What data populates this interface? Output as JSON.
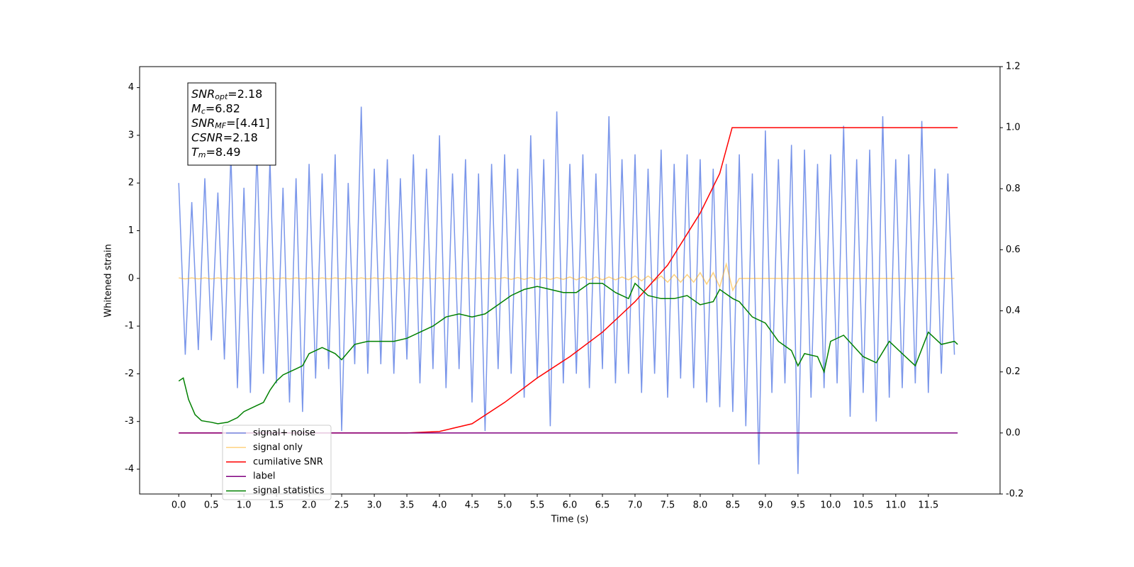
{
  "chart_data": {
    "type": "line",
    "xlabel": "Time (s)",
    "ylabel": "Whitened strain",
    "xlim": [
      -0.6,
      12.6
    ],
    "ylim": [
      -4.52,
      4.44
    ],
    "y2lim": [
      -0.2,
      1.2
    ],
    "xticks": [
      {
        "value": 0,
        "label": "0.0"
      },
      0.5,
      {
        "value": 1,
        "label": "1.0"
      },
      1.5,
      {
        "value": 2,
        "label": "2.0"
      },
      2.5,
      {
        "value": 3,
        "label": "3.0"
      },
      3.5,
      {
        "value": 4,
        "label": "4.0"
      },
      4.5,
      {
        "value": 5,
        "label": "5.0"
      },
      5.5,
      {
        "value": 6,
        "label": "6.0"
      },
      6.5,
      {
        "value": 7,
        "label": "7.0"
      },
      7.5,
      {
        "value": 8,
        "label": "8.0"
      },
      8.5,
      {
        "value": 9,
        "label": "9.0"
      },
      9.5,
      {
        "value": 10,
        "label": "10.0"
      },
      10.5,
      {
        "value": 11,
        "label": "11.0"
      },
      11.5
    ],
    "yticks": [
      -4,
      -3,
      -2,
      -1,
      0,
      1,
      2,
      3,
      4
    ],
    "y2ticks": [
      -0.2,
      {
        "value": 0,
        "label": "0.0"
      },
      0.2,
      0.4,
      0.6,
      0.8,
      {
        "value": 1,
        "label": "1.0"
      },
      1.2
    ],
    "legend": "lower left",
    "annotation": [
      {
        "symbol": "SNR",
        "subscript": "opt",
        "text": "=2.18"
      },
      {
        "symbol": "M",
        "subscript": "c",
        "text": "=6.82"
      },
      {
        "symbol": "SNR",
        "subscript": "MF",
        "text": "=[4.41]"
      },
      {
        "symbol": "CSNR",
        "text": "=2.18"
      },
      {
        "symbol": "T",
        "subscript": "m",
        "text": "=8.49"
      }
    ],
    "x": [
      0,
      0.1,
      0.2,
      0.3,
      0.4,
      0.5,
      0.6,
      0.7,
      0.8,
      0.9,
      1,
      1.1,
      1.2,
      1.3,
      1.4,
      1.5,
      1.6,
      1.7,
      1.8,
      1.9,
      2,
      2.1,
      2.2,
      2.3,
      2.4,
      2.5,
      2.6,
      2.7,
      2.8,
      2.9,
      3,
      3.1,
      3.2,
      3.3,
      3.4,
      3.5,
      3.6,
      3.7,
      3.8,
      3.9,
      4,
      4.1,
      4.2,
      4.3,
      4.4,
      4.5,
      4.6,
      4.7,
      4.8,
      4.9,
      5,
      5.1,
      5.2,
      5.3,
      5.4,
      5.5,
      5.6,
      5.7,
      5.8,
      5.9,
      6,
      6.1,
      6.2,
      6.3,
      6.4,
      6.5,
      6.6,
      6.7,
      6.8,
      6.9,
      7,
      7.1,
      7.2,
      7.3,
      7.4,
      7.5,
      7.6,
      7.7,
      7.8,
      7.9,
      8,
      8.1,
      8.2,
      8.3,
      8.4,
      8.5,
      8.6,
      8.7,
      8.8,
      8.9,
      9,
      9.1,
      9.2,
      9.3,
      9.4,
      9.5,
      9.6,
      9.7,
      9.8,
      9.9,
      10,
      10.1,
      10.2,
      10.3,
      10.4,
      10.5,
      10.6,
      10.7,
      10.8,
      10.9,
      11,
      11.1,
      11.2,
      11.3,
      11.4,
      11.5,
      11.6,
      11.7,
      11.8,
      11.9
    ],
    "series": [
      {
        "name": "signal+ noise",
        "color": "#4169e1",
        "alpha": 0.7,
        "values": [
          2.0,
          -1.6,
          1.6,
          -1.5,
          2.1,
          -1.3,
          1.8,
          -1.7,
          2.6,
          -2.3,
          1.9,
          -2.4,
          2.7,
          -2.0,
          2.5,
          -2.2,
          1.9,
          -2.6,
          2.1,
          -2.8,
          2.4,
          -2.1,
          2.2,
          -1.9,
          2.6,
          -3.2,
          2.0,
          -1.8,
          3.6,
          -2.0,
          2.3,
          -1.8,
          2.5,
          -2.0,
          2.1,
          -1.7,
          2.6,
          -2.2,
          2.3,
          -1.9,
          3.0,
          -2.3,
          2.2,
          -1.9,
          2.5,
          -2.6,
          2.2,
          -3.2,
          2.4,
          -1.9,
          2.6,
          -2.0,
          2.3,
          -2.5,
          3.0,
          -2.1,
          2.5,
          -3.1,
          3.5,
          -2.2,
          2.4,
          -2.0,
          2.6,
          -2.3,
          2.2,
          -1.9,
          3.4,
          -2.2,
          2.5,
          -2.0,
          2.6,
          -2.4,
          2.3,
          -2.0,
          2.7,
          -2.5,
          2.4,
          -2.1,
          2.6,
          -2.3,
          2.5,
          -2.6,
          2.3,
          -2.7,
          2.4,
          -2.8,
          2.6,
          -3.1,
          2.2,
          -3.9,
          3.1,
          -2.4,
          2.5,
          -2.2,
          2.8,
          -4.1,
          2.7,
          -2.5,
          2.4,
          -2.3,
          2.6,
          -2.2,
          3.2,
          -2.9,
          2.5,
          -2.4,
          2.7,
          -3.0,
          3.4,
          -2.5,
          2.5,
          -2.3,
          2.6,
          -2.2,
          3.3,
          -2.4,
          2.3,
          -2.0,
          2.2,
          -1.6
        ]
      },
      {
        "name": "signal only",
        "color": "#ffa500",
        "alpha": 0.5,
        "values": [
          0.01,
          -0.01,
          0.01,
          -0.01,
          0.01,
          -0.01,
          0.01,
          -0.01,
          0.01,
          -0.01,
          0.01,
          -0.01,
          0.01,
          -0.01,
          0.01,
          -0.01,
          0.01,
          -0.01,
          0.01,
          -0.01,
          0.01,
          -0.01,
          0.01,
          -0.01,
          0.01,
          -0.01,
          0.01,
          -0.01,
          0.01,
          -0.01,
          0.01,
          -0.01,
          0.01,
          -0.01,
          0.01,
          -0.01,
          0.01,
          -0.01,
          0.01,
          -0.01,
          0.01,
          -0.01,
          0.01,
          -0.01,
          0.01,
          -0.01,
          0.01,
          -0.01,
          0.01,
          -0.01,
          0.02,
          -0.02,
          0.02,
          -0.02,
          0.02,
          -0.02,
          0.02,
          -0.02,
          0.02,
          -0.02,
          0.03,
          -0.03,
          0.03,
          -0.03,
          0.03,
          -0.03,
          0.03,
          -0.03,
          0.03,
          -0.03,
          0.05,
          -0.05,
          0.05,
          -0.05,
          0.05,
          -0.08,
          0.08,
          -0.08,
          0.08,
          -0.08,
          0.12,
          -0.12,
          0.12,
          -0.18,
          0.3,
          -0.25,
          0,
          0,
          0,
          0,
          0,
          0,
          0,
          0,
          0,
          0,
          0,
          0,
          0,
          0,
          0,
          0,
          0,
          0,
          0,
          0,
          0,
          0,
          0,
          0,
          0,
          0,
          0,
          0,
          0,
          0,
          0,
          0,
          0,
          0
        ]
      },
      {
        "name": "cumilative SNR",
        "color": "#ff0000",
        "axis": "y2",
        "x": [
          0,
          3.5,
          4.0,
          4.5,
          5.0,
          5.5,
          6.0,
          6.5,
          7.0,
          7.5,
          8.0,
          8.3,
          8.49,
          8.5,
          11.95
        ],
        "values": [
          0,
          0,
          0.005,
          0.03,
          0.1,
          0.18,
          0.25,
          0.33,
          0.43,
          0.55,
          0.72,
          0.85,
          1.0,
          1.0,
          1.0
        ]
      },
      {
        "name": "label",
        "color": "#800080",
        "axis": "y2",
        "x": [
          0,
          11.95
        ],
        "values": [
          0,
          0
        ]
      },
      {
        "name": "signal statistics",
        "color": "#008000",
        "axis": "y2",
        "x": [
          0,
          0.07,
          0.15,
          0.25,
          0.35,
          0.5,
          0.6,
          0.75,
          0.9,
          1.0,
          1.2,
          1.3,
          1.4,
          1.5,
          1.6,
          1.7,
          1.8,
          1.9,
          2.0,
          2.2,
          2.4,
          2.5,
          2.7,
          2.9,
          3.1,
          3.3,
          3.5,
          3.7,
          3.9,
          4.1,
          4.3,
          4.5,
          4.7,
          4.9,
          5.1,
          5.3,
          5.5,
          5.7,
          5.9,
          6.1,
          6.3,
          6.5,
          6.7,
          6.9,
          7.0,
          7.2,
          7.4,
          7.6,
          7.8,
          8.0,
          8.2,
          8.3,
          8.5,
          8.6,
          8.8,
          9.0,
          9.2,
          9.4,
          9.5,
          9.6,
          9.8,
          9.9,
          10.0,
          10.2,
          10.5,
          10.7,
          10.9,
          11.1,
          11.3,
          11.5,
          11.7,
          11.9,
          11.95
        ],
        "values": [
          0.17,
          0.18,
          0.11,
          0.06,
          0.04,
          0.035,
          0.03,
          0.035,
          0.05,
          0.07,
          0.09,
          0.1,
          0.14,
          0.17,
          0.19,
          0.2,
          0.21,
          0.22,
          0.26,
          0.28,
          0.26,
          0.24,
          0.29,
          0.3,
          0.3,
          0.3,
          0.31,
          0.33,
          0.35,
          0.38,
          0.39,
          0.38,
          0.39,
          0.42,
          0.45,
          0.47,
          0.48,
          0.47,
          0.46,
          0.46,
          0.49,
          0.49,
          0.46,
          0.44,
          0.49,
          0.45,
          0.44,
          0.44,
          0.45,
          0.42,
          0.43,
          0.47,
          0.44,
          0.43,
          0.38,
          0.36,
          0.3,
          0.27,
          0.22,
          0.26,
          0.25,
          0.2,
          0.3,
          0.32,
          0.25,
          0.23,
          0.3,
          0.26,
          0.22,
          0.33,
          0.29,
          0.3,
          0.29
        ]
      }
    ]
  }
}
